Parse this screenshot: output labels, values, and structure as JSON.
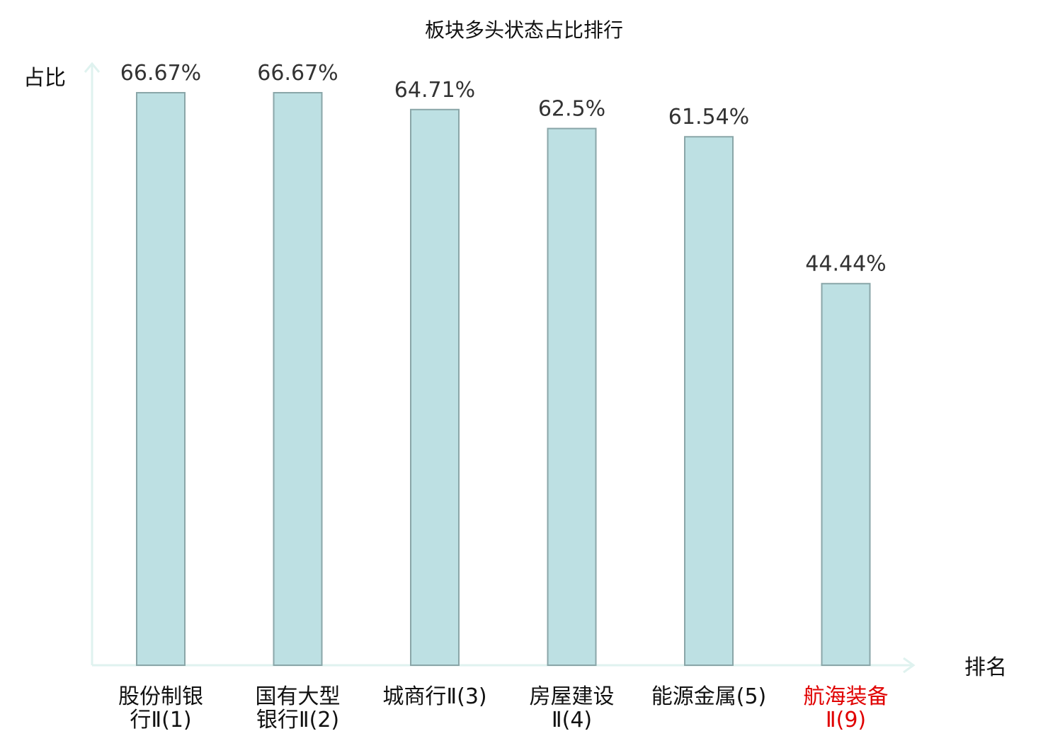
{
  "chart_data": {
    "type": "bar",
    "title": "板块多头状态占比排行",
    "ylabel": "占比",
    "xlabel": "排名",
    "ylim": [
      0,
      70
    ],
    "grid": false,
    "categories": [
      {
        "line1": "股份制银",
        "line2": "行Ⅱ(1)",
        "highlight": false
      },
      {
        "line1": "国有大型",
        "line2": "银行Ⅱ(2)",
        "highlight": false
      },
      {
        "line1": "城商行Ⅱ(3)",
        "line2": "",
        "highlight": false
      },
      {
        "line1": "房屋建设",
        "line2": "Ⅱ(4)",
        "highlight": false
      },
      {
        "line1": "能源金属(5)",
        "line2": "",
        "highlight": false
      },
      {
        "line1": "航海装备",
        "line2": "Ⅱ(9)",
        "highlight": true
      }
    ],
    "values": [
      66.67,
      66.67,
      64.71,
      62.5,
      61.54,
      44.44
    ],
    "value_labels": [
      "66.67%",
      "66.67%",
      "64.71%",
      "62.5%",
      "61.54%",
      "44.44%"
    ],
    "colors": {
      "bar_fill": "#bde0e3",
      "bar_stroke": "#8aa6a8",
      "axis": "#dff2ef",
      "label": "#111111",
      "highlight": "#e00000"
    }
  }
}
